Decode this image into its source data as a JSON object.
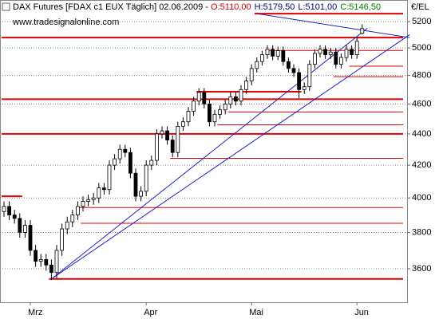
{
  "chart_data": {
    "type": "candlestick",
    "title": "DAX Futures [FDAX c1 EUX  Täglich] 02.06.2009 - ",
    "ohlc_labels": {
      "open": "O:5110,00",
      "high": "H:5179,50",
      "low": "L:5101,00",
      "close": "C:5146,50"
    },
    "website": "www.tradesignalonline.com",
    "y_axis_label": "€/EL",
    "categories": [
      null,
      null,
      null,
      null,
      null,
      "Mrz",
      null,
      null,
      null,
      null,
      null,
      null,
      null,
      null,
      null,
      null,
      null,
      null,
      null,
      null,
      null,
      null,
      null,
      null,
      null,
      null,
      null,
      "Apr",
      null,
      null,
      null,
      null,
      null,
      null,
      null,
      null,
      null,
      null,
      null,
      null,
      null,
      null,
      null,
      null,
      null,
      null,
      null,
      "Mai",
      null,
      null,
      null,
      null,
      null,
      null,
      null,
      null,
      null,
      null,
      null,
      null,
      null,
      null,
      null,
      null,
      null,
      null,
      null,
      "Jun",
      null
    ],
    "open": [
      3920,
      3950,
      3900,
      3880,
      3800,
      3840,
      3700,
      3640,
      3650,
      3620,
      3580,
      3700,
      3820,
      3860,
      3900,
      3950,
      3980,
      3990,
      4000,
      4060,
      4050,
      4200,
      4240,
      4300,
      4280,
      4150,
      4010,
      4040,
      4200,
      4230,
      4400,
      4420,
      4360,
      4280,
      4450,
      4480,
      4550,
      4620,
      4680,
      4600,
      4480,
      4530,
      4560,
      4600,
      4650,
      4620,
      4700,
      4760,
      4850,
      4900,
      4950,
      4990,
      4940,
      4980,
      4900,
      4850,
      4820,
      4700,
      4720,
      4880,
      4960,
      4990,
      4950,
      4970,
      4880,
      4930,
      4990,
      4950,
      5110
    ],
    "high": [
      3980,
      3980,
      3930,
      3910,
      3870,
      3870,
      3730,
      3680,
      3680,
      3650,
      3730,
      3850,
      3890,
      3930,
      3980,
      4010,
      4020,
      4030,
      4090,
      4090,
      4230,
      4270,
      4330,
      4330,
      4310,
      4180,
      4070,
      4230,
      4260,
      4430,
      4450,
      4450,
      4390,
      4480,
      4510,
      4580,
      4650,
      4710,
      4710,
      4630,
      4560,
      4590,
      4630,
      4680,
      4680,
      4730,
      4790,
      4880,
      4930,
      4980,
      5020,
      5020,
      5010,
      5010,
      4930,
      4880,
      4850,
      4750,
      4910,
      4990,
      5020,
      5020,
      5000,
      5000,
      4960,
      5020,
      5020,
      5080,
      5179.5
    ],
    "low": [
      3890,
      3870,
      3850,
      3770,
      3770,
      3670,
      3610,
      3610,
      3590,
      3540,
      3550,
      3670,
      3790,
      3830,
      3870,
      3920,
      3950,
      3960,
      3970,
      4020,
      4020,
      4170,
      4210,
      4250,
      4120,
      3980,
      3980,
      4010,
      4170,
      4200,
      4370,
      4330,
      4250,
      4250,
      4420,
      4450,
      4520,
      4590,
      4570,
      4450,
      4450,
      4500,
      4530,
      4570,
      4590,
      4590,
      4670,
      4730,
      4820,
      4870,
      4920,
      4910,
      4910,
      4870,
      4820,
      4790,
      4640,
      4670,
      4690,
      4850,
      4930,
      4920,
      4920,
      4850,
      4850,
      4900,
      4920,
      4920,
      5101
    ],
    "close": [
      3950,
      3900,
      3880,
      3800,
      3840,
      3700,
      3640,
      3650,
      3620,
      3580,
      3700,
      3820,
      3860,
      3900,
      3950,
      3980,
      3990,
      4000,
      4060,
      4050,
      4200,
      4240,
      4300,
      4280,
      4150,
      4010,
      4040,
      4200,
      4230,
      4400,
      4420,
      4360,
      4280,
      4450,
      4480,
      4550,
      4620,
      4680,
      4600,
      4480,
      4530,
      4560,
      4600,
      4650,
      4620,
      4700,
      4760,
      4850,
      4900,
      4950,
      4990,
      4940,
      4980,
      4900,
      4850,
      4820,
      4700,
      4720,
      4880,
      4960,
      4990,
      4950,
      4970,
      4880,
      4930,
      4990,
      4950,
      5050,
      5146.5
    ],
    "up_color": "#ffffff",
    "down_color": "#000000",
    "level_color": "#e00000",
    "trend_color": "#2020c0",
    "levels": [
      {
        "value": 5262,
        "from": 48,
        "thick": true
      },
      {
        "value": 5078,
        "from": 0,
        "thick": true
      },
      {
        "value": 4982,
        "from": 50,
        "thick": false
      },
      {
        "value": 4866,
        "from": 66,
        "thick": false
      },
      {
        "value": 4791,
        "from": 63,
        "thick": false
      },
      {
        "value": 4685,
        "from": 37,
        "to": 56,
        "thick": true
      },
      {
        "value": 4633,
        "from": 0,
        "thick": true
      },
      {
        "value": 4546,
        "from": 43,
        "thick": false
      },
      {
        "value": 4460,
        "from": 41,
        "thick": false
      },
      {
        "value": 4400,
        "from": 0,
        "thick": true
      },
      {
        "value": 4243,
        "from": 32,
        "thick": false
      },
      {
        "value": 4010,
        "from": 0,
        "to": 3,
        "thick": true
      },
      {
        "value": 3943,
        "from": 14,
        "thick": false
      },
      {
        "value": 3852,
        "from": 15,
        "thick": false
      },
      {
        "value": 3546,
        "from": 9,
        "thick": true
      }
    ],
    "trendlines": [
      {
        "from": [
          9,
          3546
        ],
        "to": [
          77,
          5100
        ]
      },
      {
        "from": [
          9,
          3546
        ],
        "to": [
          69,
          5150
        ]
      },
      {
        "from": [
          48,
          5262
        ],
        "to": [
          77,
          5078
        ]
      }
    ],
    "log_scale": true,
    "ylim": [
      3425,
      5370
    ],
    "yticks": [
      3600,
      3800,
      4000,
      4200,
      4400,
      4600,
      4800,
      5000,
      5200
    ],
    "grid": true
  }
}
